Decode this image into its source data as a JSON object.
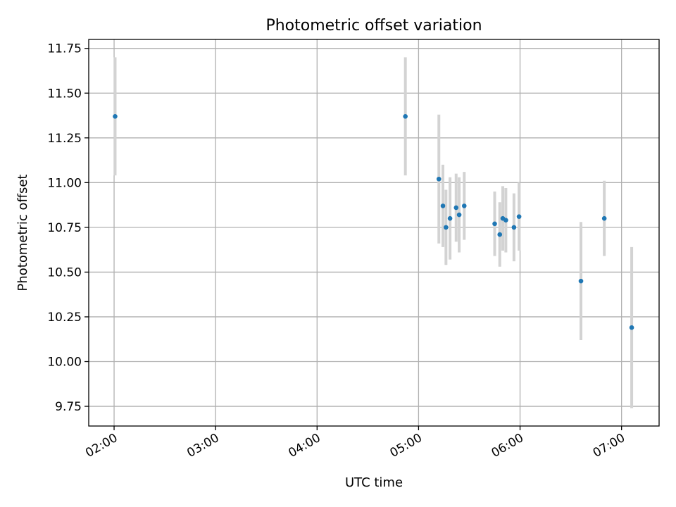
{
  "chart_data": {
    "type": "scatter",
    "title": "Photometric offset variation",
    "xlabel": "UTC time",
    "ylabel": "Photometric offset",
    "x_unit": "UTC hour (decimal)",
    "xlim": [
      1.75,
      7.37
    ],
    "ylim": [
      9.64,
      11.8
    ],
    "x_ticks": [
      {
        "value": 2.0,
        "label": "02:00"
      },
      {
        "value": 3.0,
        "label": "03:00"
      },
      {
        "value": 4.0,
        "label": "04:00"
      },
      {
        "value": 5.0,
        "label": "05:00"
      },
      {
        "value": 6.0,
        "label": "06:00"
      },
      {
        "value": 7.0,
        "label": "07:00"
      }
    ],
    "y_ticks": [
      {
        "value": 9.75,
        "label": "9.75"
      },
      {
        "value": 10.0,
        "label": "10.00"
      },
      {
        "value": 10.25,
        "label": "10.25"
      },
      {
        "value": 10.5,
        "label": "10.50"
      },
      {
        "value": 10.75,
        "label": "10.75"
      },
      {
        "value": 11.0,
        "label": "11.00"
      },
      {
        "value": 11.25,
        "label": "11.25"
      },
      {
        "value": 11.5,
        "label": "11.50"
      },
      {
        "value": 11.75,
        "label": "11.75"
      }
    ],
    "grid": true,
    "colors": {
      "point": "#1f77b4",
      "error_bar": "#d3d3d3"
    },
    "series": [
      {
        "points": [
          {
            "x": 2.01,
            "y": 11.37,
            "err": 0.33
          },
          {
            "x": 4.87,
            "y": 11.37,
            "err": 0.33
          },
          {
            "x": 5.2,
            "y": 11.02,
            "err": 0.36
          },
          {
            "x": 5.24,
            "y": 10.87,
            "err": 0.23
          },
          {
            "x": 5.27,
            "y": 10.75,
            "err": 0.21
          },
          {
            "x": 5.31,
            "y": 10.8,
            "err": 0.23
          },
          {
            "x": 5.37,
            "y": 10.86,
            "err": 0.19
          },
          {
            "x": 5.4,
            "y": 10.82,
            "err": 0.21
          },
          {
            "x": 5.45,
            "y": 10.87,
            "err": 0.19
          },
          {
            "x": 5.75,
            "y": 10.77,
            "err": 0.18
          },
          {
            "x": 5.8,
            "y": 10.71,
            "err": 0.18
          },
          {
            "x": 5.83,
            "y": 10.8,
            "err": 0.18
          },
          {
            "x": 5.86,
            "y": 10.79,
            "err": 0.18
          },
          {
            "x": 5.94,
            "y": 10.75,
            "err": 0.19
          },
          {
            "x": 5.99,
            "y": 10.81,
            "err": 0.19
          },
          {
            "x": 6.6,
            "y": 10.45,
            "err": 0.33
          },
          {
            "x": 6.83,
            "y": 10.8,
            "err": 0.21
          },
          {
            "x": 7.1,
            "y": 10.19,
            "err": 0.45
          }
        ]
      }
    ]
  }
}
